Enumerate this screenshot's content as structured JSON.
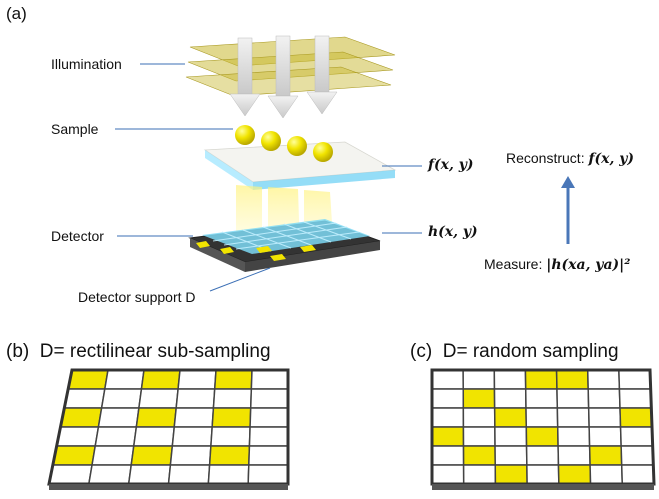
{
  "panel_a": {
    "label": "(a)",
    "illumination_label": "Illumination",
    "sample_label": "Sample",
    "detector_label": "Detector",
    "detector_support_label": "Detector support D",
    "f_label": "f(x, y)",
    "h_label": "h(x, y)",
    "reconstruct_prefix": "Reconstruct: ",
    "reconstruct_math": "f(x, y)",
    "measure_prefix": "Measure: ",
    "measure_math": "|h(xa, ya)|²"
  },
  "panel_b": {
    "label": "(b)",
    "title": "D= rectilinear sub-sampling",
    "rows": 6,
    "cols": 6,
    "filled": [
      [
        0,
        0
      ],
      [
        0,
        2
      ],
      [
        0,
        4
      ],
      [
        2,
        0
      ],
      [
        2,
        2
      ],
      [
        2,
        4
      ],
      [
        4,
        0
      ],
      [
        4,
        2
      ],
      [
        4,
        4
      ]
    ]
  },
  "panel_c": {
    "label": "(c)",
    "title": "D= random sampling",
    "rows": 6,
    "cols": 7,
    "filled": [
      [
        0,
        3
      ],
      [
        0,
        4
      ],
      [
        1,
        1
      ],
      [
        2,
        2
      ],
      [
        2,
        6
      ],
      [
        3,
        0
      ],
      [
        3,
        3
      ],
      [
        4,
        1
      ],
      [
        4,
        5
      ],
      [
        5,
        2
      ],
      [
        5,
        4
      ]
    ]
  },
  "colors": {
    "sample_yellow": "#f1e400",
    "grid_border": "#444444",
    "detector_cyan": "#7ed9f5",
    "arrow_blue": "#4a77b8",
    "plane_yellow": "#c8b830"
  }
}
